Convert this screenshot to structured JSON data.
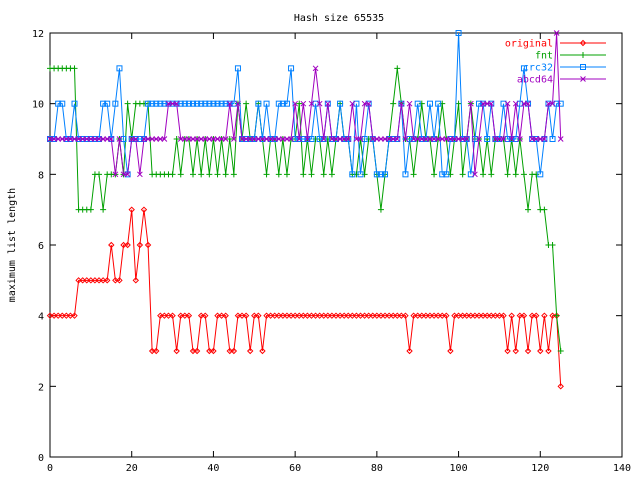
{
  "chart_data": {
    "type": "line",
    "title": "Hash size 65535",
    "xlabel": "",
    "ylabel": "maximum list length",
    "xlim": [
      0,
      140
    ],
    "ylim": [
      0,
      12
    ],
    "xticks": [
      0,
      20,
      40,
      60,
      80,
      100,
      120,
      140
    ],
    "yticks": [
      0,
      2,
      4,
      6,
      8,
      10,
      12
    ],
    "grid": false,
    "legend_position": "top-right",
    "series": [
      {
        "name": "original",
        "color": "#ff0000",
        "marker": "diamond",
        "x": [
          0,
          1,
          2,
          3,
          4,
          5,
          6,
          7,
          8,
          9,
          10,
          11,
          12,
          13,
          14,
          15,
          16,
          17,
          18,
          19,
          20,
          21,
          22,
          23,
          24,
          25,
          26,
          27,
          28,
          29,
          30,
          31,
          32,
          33,
          34,
          35,
          36,
          37,
          38,
          39,
          40,
          41,
          42,
          43,
          44,
          45,
          46,
          47,
          48,
          49,
          50,
          51,
          52,
          53,
          54,
          55,
          56,
          57,
          58,
          59,
          60,
          61,
          62,
          63,
          64,
          65,
          66,
          67,
          68,
          69,
          70,
          71,
          72,
          73,
          74,
          75,
          76,
          77,
          78,
          79,
          80,
          81,
          82,
          83,
          84,
          85,
          86,
          87,
          88,
          89,
          90,
          91,
          92,
          93,
          94,
          95,
          96,
          97,
          98,
          99,
          100,
          101,
          102,
          103,
          104,
          105,
          106,
          107,
          108,
          109,
          110,
          111,
          112,
          113,
          114,
          115,
          116,
          117,
          118,
          119,
          120,
          121,
          122,
          123,
          124,
          125
        ],
        "y": [
          4,
          4,
          4,
          4,
          4,
          4,
          4,
          5,
          5,
          5,
          5,
          5,
          5,
          5,
          5,
          6,
          5,
          5,
          6,
          6,
          7,
          5,
          6,
          7,
          6,
          3,
          3,
          4,
          4,
          4,
          4,
          3,
          4,
          4,
          4,
          3,
          3,
          4,
          4,
          3,
          3,
          4,
          4,
          4,
          3,
          3,
          4,
          4,
          4,
          3,
          4,
          4,
          3,
          4,
          4,
          4,
          4,
          4,
          4,
          4,
          4,
          4,
          4,
          4,
          4,
          4,
          4,
          4,
          4,
          4,
          4,
          4,
          4,
          4,
          4,
          4,
          4,
          4,
          4,
          4,
          4,
          4,
          4,
          4,
          4,
          4,
          4,
          4,
          3,
          4,
          4,
          4,
          4,
          4,
          4,
          4,
          4,
          4,
          3,
          4,
          4,
          4,
          4,
          4,
          4,
          4,
          4,
          4,
          4,
          4,
          4,
          4,
          3,
          4,
          3,
          4,
          4,
          3,
          4,
          4,
          3,
          4,
          3,
          4,
          4,
          2
        ]
      },
      {
        "name": "fnt",
        "color": "#00a000",
        "marker": "plus",
        "x": [
          0,
          1,
          2,
          3,
          4,
          5,
          6,
          7,
          8,
          9,
          10,
          11,
          12,
          13,
          14,
          15,
          16,
          17,
          18,
          19,
          20,
          21,
          22,
          23,
          24,
          25,
          26,
          27,
          28,
          29,
          30,
          31,
          32,
          33,
          34,
          35,
          36,
          37,
          38,
          39,
          40,
          41,
          42,
          43,
          44,
          45,
          46,
          47,
          48,
          49,
          50,
          51,
          52,
          53,
          54,
          55,
          56,
          57,
          58,
          59,
          60,
          61,
          62,
          63,
          64,
          65,
          66,
          67,
          68,
          69,
          70,
          71,
          72,
          73,
          74,
          75,
          76,
          77,
          78,
          79,
          80,
          81,
          82,
          83,
          84,
          85,
          86,
          87,
          88,
          89,
          90,
          91,
          92,
          93,
          94,
          95,
          96,
          97,
          98,
          99,
          100,
          101,
          102,
          103,
          104,
          105,
          106,
          107,
          108,
          109,
          110,
          111,
          112,
          113,
          114,
          115,
          116,
          117,
          118,
          119,
          120,
          121,
          122,
          123,
          124,
          125
        ],
        "y": [
          11,
          11,
          11,
          11,
          11,
          11,
          11,
          7,
          7,
          7,
          7,
          8,
          8,
          7,
          8,
          8,
          8,
          9,
          8,
          10,
          9,
          10,
          10,
          10,
          10,
          8,
          8,
          8,
          8,
          8,
          8,
          9,
          8,
          9,
          9,
          8,
          9,
          8,
          9,
          8,
          9,
          8,
          9,
          8,
          9,
          8,
          10,
          9,
          10,
          9,
          9,
          10,
          9,
          8,
          9,
          9,
          8,
          9,
          8,
          9,
          9,
          10,
          8,
          9,
          8,
          9,
          9,
          8,
          9,
          8,
          9,
          10,
          9,
          9,
          8,
          8,
          9,
          8,
          9,
          9,
          8,
          7,
          8,
          9,
          10,
          11,
          10,
          9,
          9,
          8,
          9,
          10,
          9,
          9,
          8,
          9,
          10,
          9,
          8,
          9,
          10,
          8,
          9,
          10,
          9,
          9,
          8,
          9,
          8,
          9,
          9,
          9,
          8,
          9,
          8,
          9,
          8,
          7,
          8,
          8,
          7,
          7,
          6,
          6,
          4,
          3
        ]
      },
      {
        "name": "crc32",
        "color": "#0080ff",
        "marker": "square",
        "x": [
          0,
          1,
          2,
          3,
          4,
          5,
          6,
          7,
          8,
          9,
          10,
          11,
          12,
          13,
          14,
          15,
          16,
          17,
          18,
          19,
          20,
          21,
          22,
          23,
          24,
          25,
          26,
          27,
          28,
          29,
          30,
          31,
          32,
          33,
          34,
          35,
          36,
          37,
          38,
          39,
          40,
          41,
          42,
          43,
          44,
          45,
          46,
          47,
          48,
          49,
          50,
          51,
          52,
          53,
          54,
          55,
          56,
          57,
          58,
          59,
          60,
          61,
          62,
          63,
          64,
          65,
          66,
          67,
          68,
          69,
          70,
          71,
          72,
          73,
          74,
          75,
          76,
          77,
          78,
          79,
          80,
          81,
          82,
          83,
          84,
          85,
          86,
          87,
          88,
          89,
          90,
          91,
          92,
          93,
          94,
          95,
          96,
          97,
          98,
          99,
          100,
          101,
          102,
          103,
          104,
          105,
          106,
          107,
          108,
          109,
          110,
          111,
          112,
          113,
          114,
          115,
          116,
          117,
          118,
          119,
          120,
          121,
          122,
          123,
          124,
          125
        ],
        "y": [
          9,
          9,
          10,
          10,
          9,
          9,
          10,
          9,
          9,
          9,
          9,
          9,
          9,
          10,
          10,
          9,
          10,
          11,
          9,
          8,
          9,
          9,
          9,
          9,
          10,
          10,
          10,
          10,
          10,
          10,
          10,
          10,
          10,
          10,
          10,
          10,
          10,
          10,
          10,
          10,
          10,
          10,
          10,
          10,
          10,
          10,
          11,
          9,
          9,
          9,
          9,
          10,
          9,
          10,
          9,
          9,
          10,
          10,
          10,
          11,
          9,
          9,
          9,
          9,
          9,
          10,
          9,
          9,
          10,
          9,
          9,
          10,
          9,
          9,
          8,
          10,
          8,
          9,
          10,
          9,
          8,
          8,
          8,
          9,
          9,
          9,
          10,
          8,
          9,
          9,
          10,
          9,
          9,
          10,
          9,
          10,
          8,
          8,
          9,
          9,
          12,
          9,
          9,
          8,
          9,
          10,
          10,
          9,
          10,
          9,
          9,
          10,
          9,
          9,
          9,
          10,
          11,
          10,
          9,
          9,
          8,
          9,
          10,
          9,
          10,
          10
        ]
      },
      {
        "name": "abcd64",
        "color": "#a000c0",
        "marker": "cross",
        "x": [
          0,
          1,
          2,
          3,
          4,
          5,
          6,
          7,
          8,
          9,
          10,
          11,
          12,
          13,
          14,
          15,
          16,
          17,
          18,
          19,
          20,
          21,
          22,
          23,
          24,
          25,
          26,
          27,
          28,
          29,
          30,
          31,
          32,
          33,
          34,
          35,
          36,
          37,
          38,
          39,
          40,
          41,
          42,
          43,
          44,
          45,
          46,
          47,
          48,
          49,
          50,
          51,
          52,
          53,
          54,
          55,
          56,
          57,
          58,
          59,
          60,
          61,
          62,
          63,
          64,
          65,
          66,
          67,
          68,
          69,
          70,
          71,
          72,
          73,
          74,
          75,
          76,
          77,
          78,
          79,
          80,
          81,
          82,
          83,
          84,
          85,
          86,
          87,
          88,
          89,
          90,
          91,
          92,
          93,
          94,
          95,
          96,
          97,
          98,
          99,
          100,
          101,
          102,
          103,
          104,
          105,
          106,
          107,
          108,
          109,
          110,
          111,
          112,
          113,
          114,
          115,
          116,
          117,
          118,
          119,
          120,
          121,
          122,
          123,
          124,
          125
        ],
        "y": [
          9,
          9,
          9,
          9,
          9,
          9,
          9,
          9,
          9,
          9,
          9,
          9,
          9,
          9,
          9,
          9,
          8,
          9,
          8,
          8,
          9,
          9,
          8,
          9,
          9,
          9,
          9,
          9,
          9,
          10,
          10,
          10,
          9,
          9,
          9,
          9,
          9,
          9,
          9,
          9,
          9,
          9,
          9,
          9,
          10,
          9,
          10,
          9,
          9,
          9,
          9,
          9,
          9,
          9,
          9,
          9,
          9,
          9,
          9,
          9,
          10,
          9,
          10,
          9,
          10,
          11,
          10,
          9,
          10,
          9,
          9,
          9,
          9,
          9,
          10,
          9,
          9,
          10,
          10,
          9,
          9,
          9,
          9,
          9,
          9,
          9,
          10,
          9,
          10,
          9,
          9,
          9,
          9,
          9,
          9,
          9,
          9,
          9,
          9,
          9,
          9,
          9,
          9,
          10,
          8,
          9,
          10,
          10,
          10,
          9,
          9,
          9,
          10,
          9,
          10,
          9,
          10,
          10,
          9,
          9,
          9,
          9,
          10,
          10,
          12,
          9
        ]
      }
    ]
  }
}
